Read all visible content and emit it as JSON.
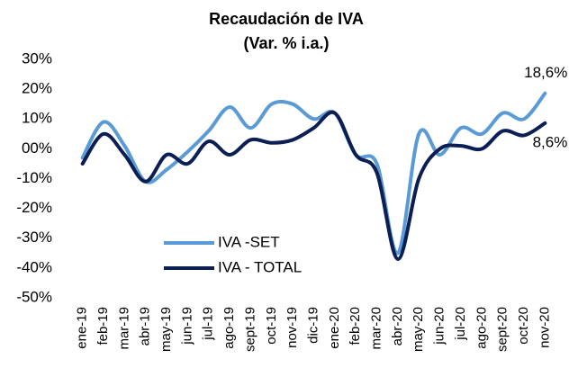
{
  "chart_data": {
    "type": "line",
    "title": "Recaudación de IVA",
    "subtitle": "(Var. % i.a.)",
    "categories": [
      "ene-19",
      "feb-19",
      "mar-19",
      "abr-19",
      "may-19",
      "jun-19",
      "jul-19",
      "ago-19",
      "sept-19",
      "oct-19",
      "nov-19",
      "dic-19",
      "ene-20",
      "feb-20",
      "mar-20",
      "abr-20",
      "may-20",
      "jun-20",
      "jul-20",
      "ago-20",
      "sept-20",
      "oct-20",
      "nov-20"
    ],
    "series": [
      {
        "name": "IVA -SET",
        "color": "#5b9bd5",
        "values": [
          -3,
          9,
          1,
          -11,
          -7,
          -1,
          6,
          14,
          7,
          15,
          15,
          10,
          12,
          -2,
          -5,
          -35,
          5,
          -2,
          7,
          5,
          12,
          10,
          18.6
        ],
        "value_labels": [
          null,
          null,
          null,
          null,
          null,
          null,
          null,
          null,
          null,
          null,
          null,
          null,
          null,
          null,
          null,
          null,
          null,
          null,
          null,
          null,
          null,
          null,
          "18,6%"
        ]
      },
      {
        "name": "IVA - TOTAL",
        "color": "#0b1f55",
        "values": [
          -5,
          5,
          -2,
          -11,
          -2,
          -5,
          2.5,
          -2,
          3,
          2,
          3,
          7,
          12,
          -2,
          -8,
          -37,
          -10,
          0,
          1,
          0,
          6,
          4.5,
          8.6
        ],
        "value_labels": [
          null,
          null,
          null,
          null,
          null,
          null,
          null,
          null,
          null,
          null,
          null,
          null,
          null,
          null,
          null,
          null,
          null,
          null,
          null,
          null,
          null,
          null,
          "8,6%"
        ]
      }
    ],
    "ylim": [
      -50,
      30
    ],
    "yticks": [
      {
        "value": -50,
        "label": "-50%"
      },
      {
        "value": -40,
        "label": "-40%"
      },
      {
        "value": -30,
        "label": "-30%"
      },
      {
        "value": -20,
        "label": "-20%"
      },
      {
        "value": -10,
        "label": "-10%"
      },
      {
        "value": 0,
        "label": "00%"
      },
      {
        "value": 10,
        "label": "10%"
      },
      {
        "value": 20,
        "label": "20%"
      },
      {
        "value": 30,
        "label": "30%"
      }
    ],
    "grid": false,
    "legend": "lower left"
  }
}
